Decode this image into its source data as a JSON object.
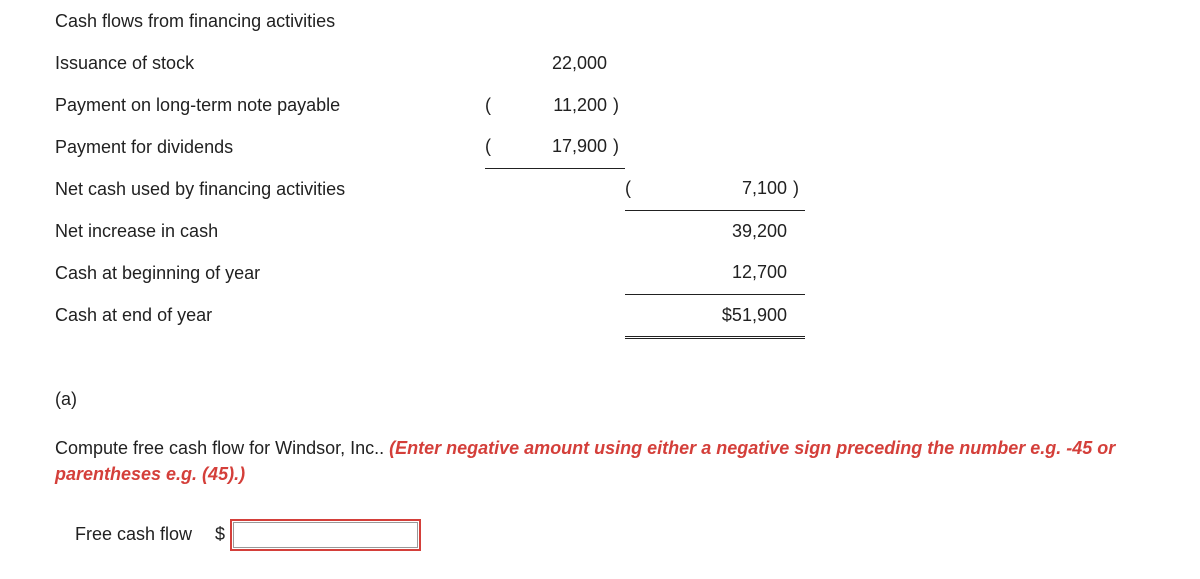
{
  "table": {
    "section_header": "Cash flows from financing activities",
    "rows": [
      {
        "label": "Issuance of stock",
        "col1_lp": "",
        "col1_num": "22,000",
        "col1_rp": ""
      },
      {
        "label": "Payment on long-term note payable",
        "col1_lp": "(",
        "col1_num": "11,200",
        "col1_rp": ")"
      },
      {
        "label": "Payment for dividends",
        "col1_lp": "(",
        "col1_num": "17,900",
        "col1_rp": ")"
      }
    ],
    "subtotal": {
      "label": "Net cash used by financing activities",
      "col2_lp": "(",
      "col2_num": "7,100",
      "col2_rp": ")"
    },
    "net_increase": {
      "label": "Net increase in cash",
      "col2_num": "39,200"
    },
    "cash_begin": {
      "label": "Cash at beginning of year",
      "col2_num": "12,700"
    },
    "cash_end": {
      "label": "Cash at end of year",
      "col2_num": "$51,900"
    }
  },
  "part": {
    "letter": "(a)",
    "instruction_plain": "Compute free cash flow for Windsor, Inc.. ",
    "instruction_hint": "(Enter negative amount using either a negative sign preceding the number e.g. -45 or parentheses e.g. (45).)"
  },
  "input": {
    "label": "Free cash flow",
    "currency": "$",
    "value": ""
  }
}
